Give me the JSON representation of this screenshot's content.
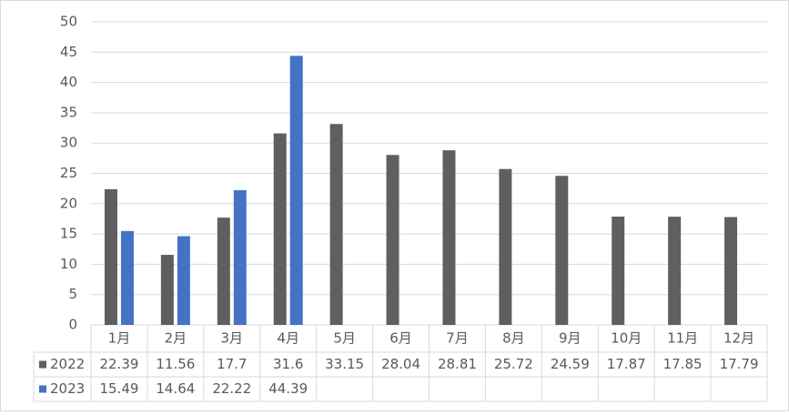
{
  "chart_data": {
    "type": "bar",
    "categories": [
      "1月",
      "2月",
      "3月",
      "4月",
      "5月",
      "6月",
      "7月",
      "8月",
      "9月",
      "10月",
      "11月",
      "12月"
    ],
    "series": [
      {
        "name": "2022",
        "color": "#5f5f5f",
        "values": [
          22.39,
          11.56,
          17.7,
          31.6,
          33.15,
          28.04,
          28.81,
          25.72,
          24.59,
          17.87,
          17.85,
          17.79
        ]
      },
      {
        "name": "2023",
        "color": "#4472c4",
        "values": [
          15.49,
          14.64,
          22.22,
          44.39,
          null,
          null,
          null,
          null,
          null,
          null,
          null,
          null
        ]
      }
    ],
    "ylim": [
      0,
      50
    ],
    "yticks": [
      0,
      5,
      10,
      15,
      20,
      25,
      30,
      35,
      40,
      45,
      50
    ],
    "grid": true
  }
}
